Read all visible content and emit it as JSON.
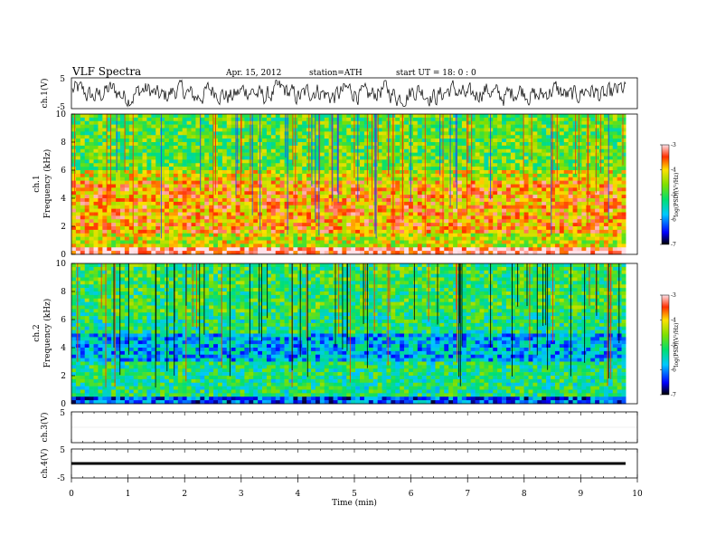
{
  "header": {
    "title": "VLF  Spectra",
    "date": "Apr. 15, 2012",
    "station": "station=ATH",
    "start": "start  UT  =    18: 0  : 0"
  },
  "chart_data": [
    {
      "type": "line",
      "id": "ch1-waveform",
      "ylabel": "ch.1(V)",
      "ytick_labels": [
        "5",
        "-5"
      ],
      "ylim": [
        -5,
        5
      ],
      "xlim": [
        0,
        10
      ],
      "data_end_min": 9.8,
      "description_values": "noisy waveform oscillating roughly between -4 and 4 V"
    },
    {
      "type": "heatmap",
      "id": "ch1-spectrogram",
      "ylabel": "ch.1\nFrequency  (kHz)",
      "ylabel_lines": [
        "ch.1",
        "Frequency  (kHz)"
      ],
      "ylim": [
        0,
        10
      ],
      "yticks": [
        0,
        2,
        4,
        6,
        8,
        10
      ],
      "xlim": [
        0,
        10
      ],
      "data_end_min": 9.8,
      "colorbar": {
        "label": "log(PSD)(V²/Hz)",
        "range": [
          -7,
          -3
        ],
        "ticks": [
          "-3",
          "-4",
          "-5",
          "-6",
          "-7"
        ]
      },
      "dominant_level": -4.3
    },
    {
      "type": "heatmap",
      "id": "ch2-spectrogram",
      "ylabel_lines": [
        "ch.2",
        "Frequency  (kHz)"
      ],
      "ylim": [
        0,
        10
      ],
      "yticks": [
        0,
        2,
        4,
        6,
        8,
        10
      ],
      "xlim": [
        0,
        10
      ],
      "data_end_min": 9.8,
      "colorbar": {
        "label": "log(PSD)(V²/Hz)",
        "range": [
          -7,
          -3
        ],
        "ticks": [
          "-3",
          "-4",
          "-5",
          "-6",
          "-7"
        ]
      },
      "dominant_level": -5.2
    },
    {
      "type": "line",
      "id": "ch3-waveform",
      "ylabel": "ch.3(V)",
      "ytick_labels": [
        "5"
      ],
      "ylim": [
        -5,
        5
      ],
      "xlim": [
        0,
        10
      ],
      "flat": true
    },
    {
      "type": "line",
      "id": "ch4-waveform",
      "ylabel": "ch.4(V)",
      "ytick_labels": [
        "5",
        "-5"
      ],
      "ylim": [
        -5,
        5
      ],
      "xlim": [
        0,
        10
      ],
      "data_end_min": 9.8,
      "level": 0
    }
  ],
  "xaxis": {
    "label": "Time  (min)",
    "ticks": [
      "0",
      "1",
      "2",
      "3",
      "4",
      "5",
      "6",
      "7",
      "8",
      "9",
      "10"
    ]
  }
}
